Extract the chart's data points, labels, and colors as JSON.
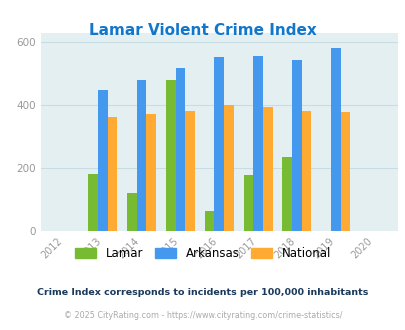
{
  "title": "Lamar Violent Crime Index",
  "all_years": [
    2012,
    2013,
    2014,
    2015,
    2016,
    2017,
    2018,
    2019,
    2020
  ],
  "data_years": [
    2013,
    2014,
    2015,
    2016,
    2017,
    2018,
    2019
  ],
  "lamar": [
    180,
    120,
    480,
    65,
    178,
    235,
    0
  ],
  "arkansas": [
    448,
    482,
    520,
    553,
    557,
    545,
    583
  ],
  "national": [
    363,
    373,
    382,
    400,
    395,
    383,
    378
  ],
  "lamar_color": "#77bb33",
  "arkansas_color": "#4499ee",
  "national_color": "#ffaa33",
  "bg_color": "#e4eff2",
  "title_color": "#1177cc",
  "ylim": [
    0,
    630
  ],
  "yticks": [
    0,
    200,
    400,
    600
  ],
  "bar_width": 0.25,
  "footnote1": "Crime Index corresponds to incidents per 100,000 inhabitants",
  "footnote2": "© 2025 CityRating.com - https://www.cityrating.com/crime-statistics/",
  "footnote1_color": "#1a3a5c",
  "footnote2_color": "#aaaaaa",
  "grid_color": "#c8dde3",
  "tick_color": "#999999"
}
